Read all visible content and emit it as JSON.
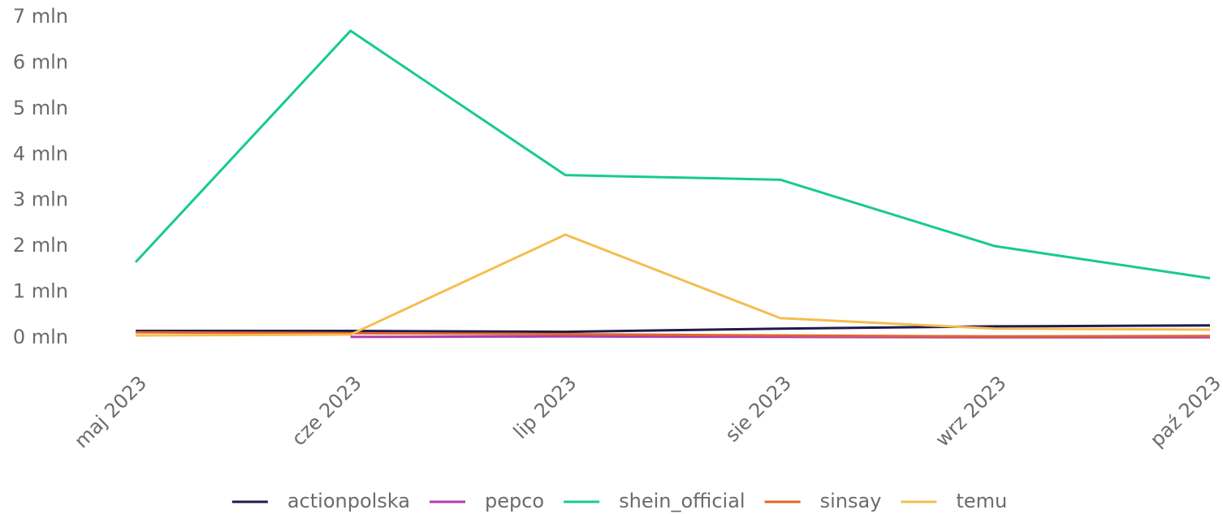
{
  "chart_data": {
    "type": "line",
    "categories": [
      "maj 2023",
      "cze 2023",
      "lip 2023",
      "sie 2023",
      "wrz 2023",
      "paź 2023"
    ],
    "series": [
      {
        "name": "actionpolska",
        "color": "#1f1a4d",
        "values": [
          0.15,
          0.15,
          0.13,
          0.2,
          0.25,
          0.27
        ]
      },
      {
        "name": "pepco",
        "color": "#b03bb8",
        "values": [
          null,
          0.02,
          0.03,
          0.02,
          0.01,
          0.01
        ]
      },
      {
        "name": "shein_official",
        "color": "#17cc8a",
        "values": [
          1.65,
          6.7,
          3.55,
          3.45,
          2.0,
          1.3
        ]
      },
      {
        "name": "sinsay",
        "color": "#e0672a",
        "values": [
          0.12,
          0.1,
          0.08,
          0.05,
          0.03,
          0.04
        ]
      },
      {
        "name": "temu",
        "color": "#f5bd4f",
        "values": [
          0.05,
          0.07,
          2.25,
          0.43,
          0.2,
          0.18
        ]
      }
    ],
    "ylim": [
      0,
      7
    ],
    "yticks": [
      {
        "value": 0,
        "label": "0 mln"
      },
      {
        "value": 1,
        "label": "1 mln"
      },
      {
        "value": 2,
        "label": "2 mln"
      },
      {
        "value": 3,
        "label": "3 mln"
      },
      {
        "value": 4,
        "label": "4 mln"
      },
      {
        "value": 5,
        "label": "5 mln"
      },
      {
        "value": 6,
        "label": "6 mln"
      },
      {
        "value": 7,
        "label": "7 mln"
      }
    ],
    "legend": "bottom"
  }
}
